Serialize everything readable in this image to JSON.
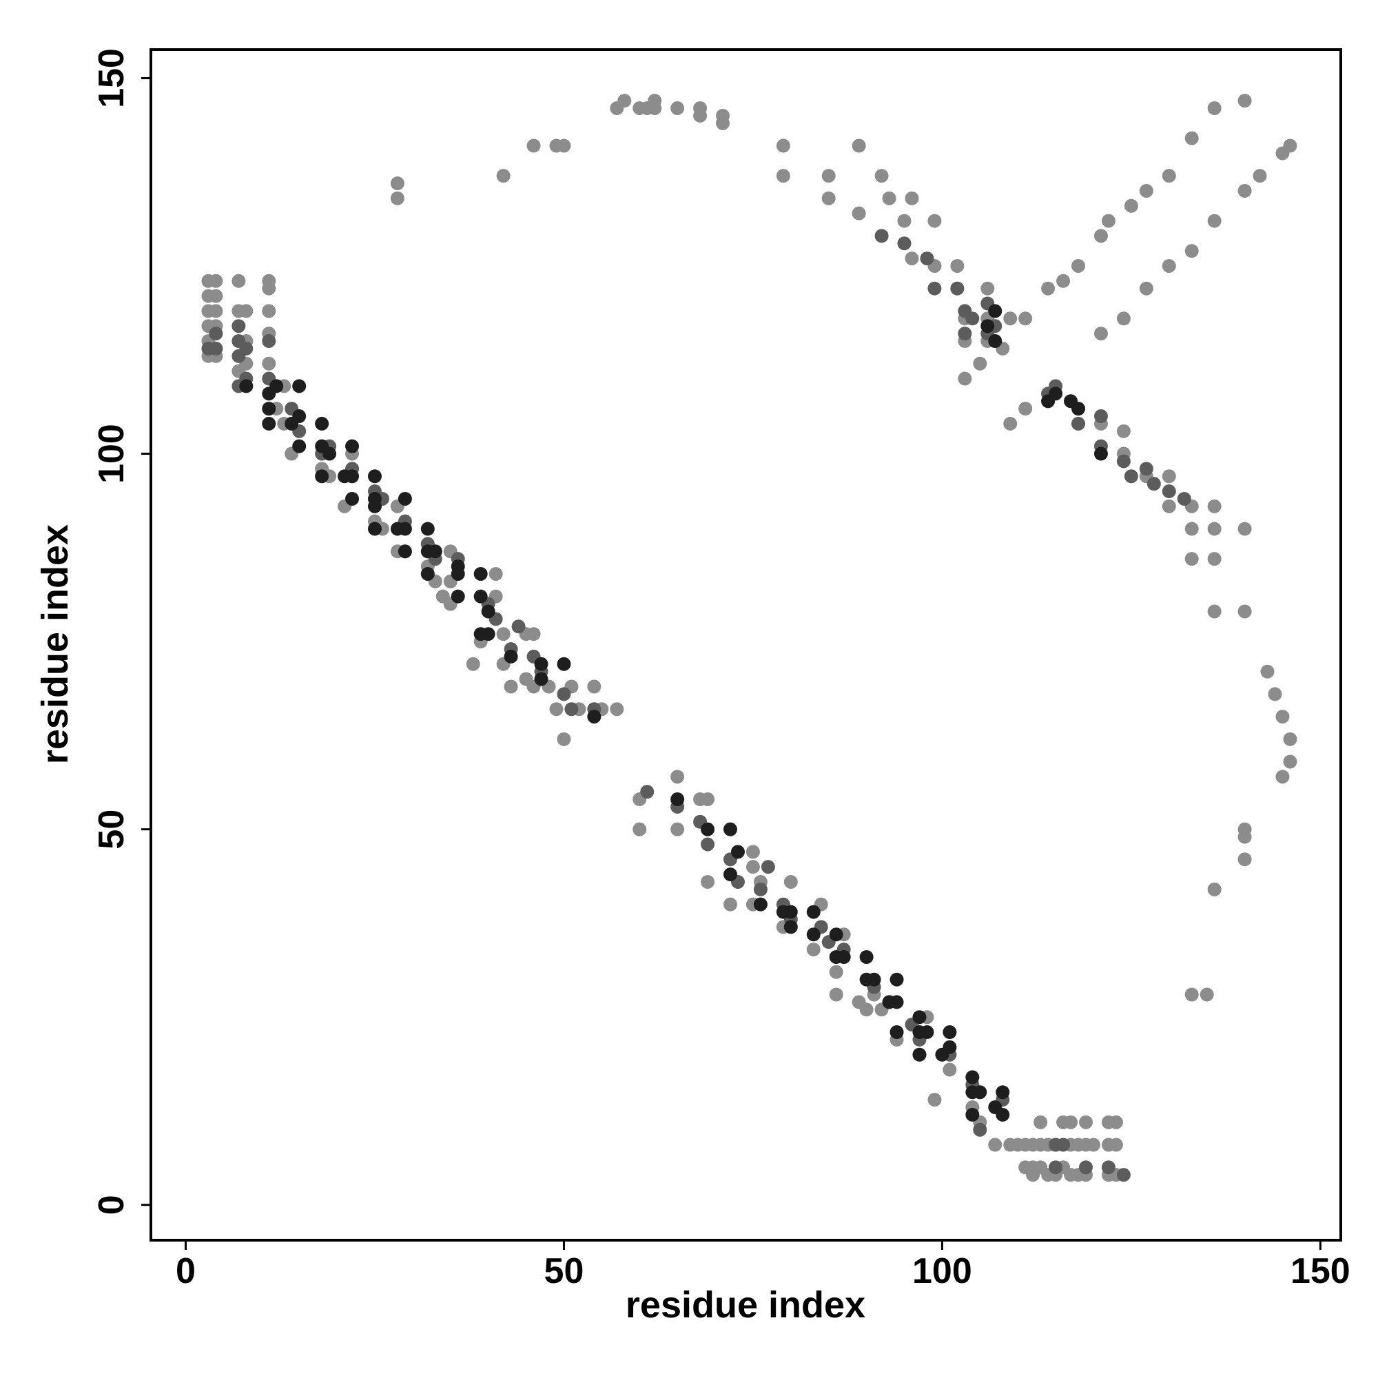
{
  "chart_data": {
    "type": "scatter",
    "xlabel": "residue index",
    "ylabel": "residue index",
    "xlim": [
      -4.6,
      152.7
    ],
    "ylim": [
      -4.7,
      153.8
    ],
    "xticks": [
      0,
      50,
      100,
      150
    ],
    "yticks": [
      0,
      50,
      100,
      150
    ],
    "series": [
      {
        "color": "#8c8c8c",
        "x": [
          3,
          3,
          3,
          3,
          3,
          3,
          4,
          4,
          4,
          4,
          7,
          7,
          7,
          8,
          8,
          11,
          11,
          11,
          11,
          11,
          8,
          4,
          13,
          12,
          13,
          14,
          18,
          19,
          22,
          21,
          25,
          26,
          28,
          28,
          29,
          32,
          33,
          35,
          35,
          35,
          34,
          39,
          38,
          41,
          41,
          42,
          42,
          43,
          45,
          45,
          46,
          46,
          48,
          49,
          50,
          51,
          52,
          54,
          55,
          57,
          60,
          60,
          65,
          65,
          68,
          69,
          69,
          72,
          75,
          75,
          76,
          75,
          79,
          80,
          83,
          84,
          86,
          87,
          86,
          89,
          90,
          92,
          91,
          94,
          97,
          98,
          99,
          101,
          104,
          105,
          107,
          109,
          110,
          111,
          112,
          113,
          114,
          115,
          116,
          117,
          118,
          119,
          119,
          120,
          122,
          122,
          123,
          123,
          122,
          123,
          111,
          112,
          113,
          115,
          117,
          118,
          116,
          119,
          117,
          113,
          114,
          112,
          28,
          28,
          42,
          46,
          49,
          50,
          57,
          58,
          60,
          61,
          62,
          62,
          65,
          68,
          68,
          71,
          71,
          79,
          79,
          85,
          85,
          89,
          89,
          92,
          93,
          95,
          96,
          96,
          99,
          99,
          102,
          102,
          103,
          106,
          106,
          103,
          106,
          109,
          111,
          103,
          105,
          108,
          114,
          116,
          118,
          121,
          122,
          125,
          127,
          130,
          133,
          136,
          140,
          109,
          111,
          114,
          121,
          124,
          127,
          130,
          133,
          136,
          140,
          142,
          145,
          146,
          114,
          117,
          118,
          121,
          124,
          124,
          127,
          130,
          130,
          133,
          133,
          136,
          136,
          133,
          136,
          140,
          140,
          136,
          143,
          144,
          145,
          146,
          146,
          145,
          140,
          140,
          136,
          133,
          135,
          140
        ],
        "y": [
          123,
          121,
          119,
          117,
          115,
          113,
          123,
          119,
          117,
          113,
          123,
          119,
          111,
          119,
          112,
          123,
          122,
          119,
          116,
          112,
          115,
          121,
          109,
          106,
          104,
          100,
          98,
          97,
          100,
          93,
          91,
          90,
          93,
          87,
          87,
          85,
          83,
          87,
          83,
          80,
          81,
          75,
          72,
          81,
          84,
          76,
          72,
          69,
          70,
          76,
          76,
          69,
          69,
          66,
          62,
          69,
          66,
          69,
          66,
          66,
          54,
          50,
          50,
          57,
          54,
          43,
          54,
          40,
          40,
          47,
          43,
          45,
          37,
          43,
          34,
          40,
          28,
          36,
          31,
          27,
          26,
          26,
          28,
          22,
          20,
          25,
          14,
          18,
          13,
          11,
          8,
          8,
          8,
          5,
          4,
          8,
          4,
          4,
          11,
          4,
          4,
          4,
          11,
          8,
          4,
          11,
          4,
          11,
          8,
          8,
          8,
          8,
          5,
          8,
          8,
          8,
          5,
          8,
          11,
          11,
          8,
          5,
          136,
          134,
          137,
          141,
          141,
          141,
          146,
          147,
          146,
          146,
          147,
          146,
          146,
          146,
          145,
          145,
          144,
          141,
          137,
          137,
          134,
          132,
          141,
          137,
          134,
          131,
          134,
          126,
          131,
          125,
          125,
          122,
          118,
          122,
          118,
          115,
          115,
          118,
          118,
          110,
          112,
          114,
          122,
          123,
          125,
          129,
          131,
          133,
          135,
          137,
          142,
          146,
          147,
          104,
          106,
          108,
          116,
          118,
          122,
          125,
          127,
          131,
          135,
          137,
          140,
          141,
          107,
          107,
          104,
          104,
          100,
          103,
          97,
          97,
          93,
          93,
          90,
          93,
          90,
          86,
          86,
          90,
          79,
          79,
          71,
          68,
          65,
          62,
          59,
          57,
          50,
          46,
          42,
          28,
          28,
          49
        ]
      },
      {
        "color": "#5c5c5c",
        "x": [
          4,
          4,
          3,
          7,
          7,
          7,
          8,
          11,
          8,
          11,
          7,
          14,
          18,
          15,
          19,
          22,
          25,
          26,
          29,
          32,
          33,
          36,
          40,
          41,
          43,
          44,
          46,
          47,
          50,
          51,
          54,
          61,
          65,
          68,
          69,
          72,
          73,
          76,
          77,
          79,
          80,
          84,
          85,
          87,
          91,
          93,
          96,
          97,
          101,
          104,
          108,
          105,
          115,
          115,
          116,
          119,
          122,
          124,
          92,
          95,
          98,
          99,
          102,
          103,
          104,
          106,
          107,
          103,
          106,
          114,
          115,
          118,
          121,
          121,
          124,
          127,
          128,
          130,
          132,
          125
        ],
        "y": [
          116,
          114,
          114,
          115,
          113,
          117,
          114,
          115,
          110,
          110,
          109,
          106,
          100,
          103,
          101,
          98,
          95,
          94,
          91,
          88,
          86,
          86,
          80,
          78,
          74,
          77,
          73,
          71,
          68,
          66,
          66,
          55,
          53,
          51,
          48,
          46,
          43,
          42,
          45,
          40,
          38,
          37,
          35,
          34,
          29,
          27,
          24,
          22,
          20,
          16,
          14,
          10,
          8,
          5,
          8,
          5,
          5,
          4,
          129,
          128,
          126,
          122,
          122,
          119,
          118,
          116,
          117,
          116,
          120,
          108,
          109,
          104,
          101,
          105,
          99,
          98,
          96,
          95,
          94,
          97
        ]
      },
      {
        "color": "#1e1e1e",
        "x": [
          8,
          11,
          12,
          15,
          11,
          14,
          15,
          15,
          11,
          18,
          18,
          19,
          22,
          18,
          21,
          22,
          22,
          25,
          25,
          25,
          29,
          28,
          29,
          25,
          32,
          29,
          32,
          33,
          36,
          32,
          36,
          39,
          36,
          39,
          40,
          39,
          40,
          43,
          47,
          50,
          47,
          54,
          65,
          69,
          72,
          73,
          72,
          76,
          79,
          80,
          80,
          83,
          83,
          86,
          87,
          86,
          90,
          90,
          91,
          94,
          93,
          94,
          97,
          94,
          97,
          98,
          101,
          97,
          100,
          101,
          104,
          104,
          105,
          108,
          104,
          108,
          107,
          106,
          107,
          107,
          114,
          115,
          118,
          121,
          117
        ],
        "y": [
          109,
          108,
          109,
          109,
          106,
          104,
          105,
          101,
          104,
          104,
          101,
          100,
          101,
          97,
          97,
          97,
          94,
          97,
          94,
          93,
          94,
          90,
          90,
          90,
          90,
          87,
          87,
          87,
          85,
          84,
          84,
          84,
          81,
          81,
          79,
          76,
          76,
          73,
          72,
          72,
          70,
          65,
          54,
          50,
          50,
          47,
          44,
          40,
          39,
          39,
          37,
          39,
          36,
          36,
          33,
          33,
          33,
          30,
          30,
          30,
          27,
          27,
          25,
          23,
          23,
          23,
          23,
          20,
          20,
          21,
          17,
          15,
          15,
          15,
          12,
          12,
          13,
          117,
          115,
          119,
          107,
          108,
          106,
          100,
          107
        ]
      }
    ]
  }
}
